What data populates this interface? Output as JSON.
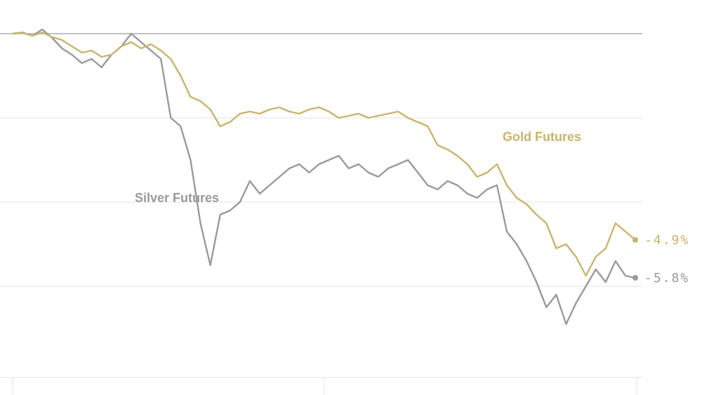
{
  "chart_data": {
    "type": "line",
    "title": "",
    "xlabel": "",
    "ylabel": "",
    "ylim": [
      -7.5,
      0.3
    ],
    "grid": true,
    "baseline": 0,
    "series": [
      {
        "name": "Gold Futures",
        "color": "#c9b46e",
        "end_label": "-4.9%",
        "values": [
          0,
          0.02,
          -0.05,
          0.03,
          -0.08,
          -0.15,
          -0.3,
          -0.45,
          -0.4,
          -0.55,
          -0.5,
          -0.3,
          -0.2,
          -0.35,
          -0.25,
          -0.4,
          -0.6,
          -1.0,
          -1.5,
          -1.6,
          -1.8,
          -2.2,
          -2.1,
          -1.9,
          -1.85,
          -1.9,
          -1.8,
          -1.75,
          -1.85,
          -1.9,
          -1.8,
          -1.75,
          -1.85,
          -2.0,
          -1.95,
          -1.9,
          -2.0,
          -1.95,
          -1.9,
          -1.85,
          -2.0,
          -2.1,
          -2.2,
          -2.65,
          -2.75,
          -2.9,
          -3.1,
          -3.4,
          -3.3,
          -3.1,
          -3.6,
          -3.9,
          -4.05,
          -4.3,
          -4.5,
          -5.1,
          -5.0,
          -5.3,
          -5.75,
          -5.3,
          -5.1,
          -4.5,
          -4.7,
          -4.9
        ]
      },
      {
        "name": "Silver Futures",
        "color": "#9a9a9a",
        "end_label": "-5.8%",
        "values": [
          0,
          0.03,
          -0.05,
          0.1,
          -0.1,
          -0.35,
          -0.5,
          -0.7,
          -0.6,
          -0.8,
          -0.5,
          -0.3,
          0.0,
          -0.2,
          -0.4,
          -0.6,
          -2.0,
          -2.2,
          -3.0,
          -4.5,
          -5.5,
          -4.3,
          -4.2,
          -4.0,
          -3.5,
          -3.8,
          -3.6,
          -3.4,
          -3.2,
          -3.1,
          -3.3,
          -3.1,
          -3.0,
          -2.9,
          -3.2,
          -3.1,
          -3.3,
          -3.4,
          -3.2,
          -3.1,
          -3.0,
          -3.3,
          -3.6,
          -3.7,
          -3.5,
          -3.6,
          -3.8,
          -3.9,
          -3.7,
          -3.6,
          -4.7,
          -5.0,
          -5.4,
          -5.9,
          -6.5,
          -6.2,
          -6.9,
          -6.4,
          -6.0,
          -5.6,
          -5.9,
          -5.4,
          -5.75,
          -5.8
        ]
      }
    ]
  }
}
